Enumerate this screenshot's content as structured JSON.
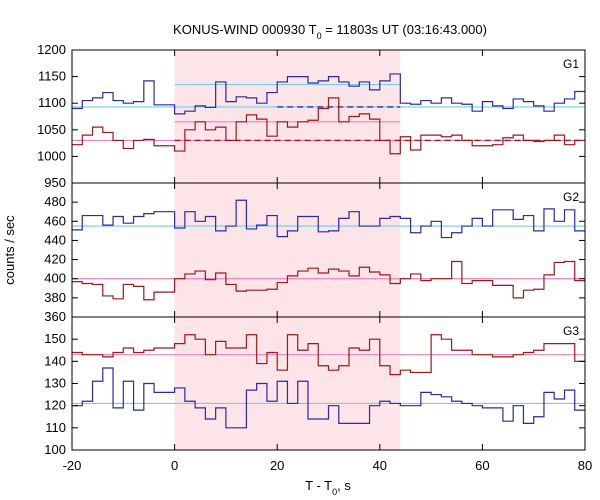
{
  "chart_data": {
    "type": "line",
    "title": "KONUS-WIND 000930 T",
    "title_sub": "0",
    "title_rest": " = 11803s UT (03:16:43.000)",
    "xlabel": "T - T",
    "xlabel_sub": "0",
    "xlabel_rest": ", s",
    "ylabel": "counts / sec",
    "xlim": [
      -20,
      80
    ],
    "xticks": [
      -20,
      0,
      20,
      40,
      60,
      80
    ],
    "highlight_interval": [
      0,
      44
    ],
    "colors": {
      "blue_series": "#2a2aa8",
      "red_series": "#a01818",
      "blue_bg": "#6fd0e8",
      "red_bg": "#ee82c0",
      "highlight": "#fde4e8"
    },
    "panels": [
      {
        "label": "G1",
        "ylim": [
          950,
          1200
        ],
        "yticks": [
          950,
          1000,
          1050,
          1100,
          1150,
          1200
        ],
        "x_edges": [
          -20,
          -18,
          -16,
          -14,
          -12,
          -10,
          -8,
          -6,
          -4,
          -2,
          0,
          2,
          4,
          6,
          8,
          10,
          12,
          14,
          16,
          18,
          20,
          22,
          24,
          26,
          28,
          30,
          32,
          34,
          36,
          38,
          40,
          42,
          44,
          46,
          48,
          50,
          52,
          54,
          56,
          58,
          60,
          62,
          64,
          66,
          68,
          70,
          72,
          74,
          76,
          78,
          80
        ],
        "series": [
          {
            "color": "blue",
            "values": [
              1090,
              1105,
              1110,
              1120,
              1105,
              1100,
              1103,
              1142,
              1097,
              1097,
              1080,
              1085,
              1095,
              1092,
              1140,
              1103,
              1112,
              1110,
              1100,
              1120,
              1140,
              1150,
              1150,
              1138,
              1142,
              1150,
              1140,
              1132,
              1140,
              1125,
              1142,
              1155,
              1100,
              1098,
              1105,
              1100,
              1110,
              1100,
              1098,
              1085,
              1103,
              1095,
              1090,
              1108,
              1103,
              1095,
              1085,
              1100,
              1108,
              1122
            ]
          },
          {
            "color": "red",
            "values": [
              1022,
              1040,
              1055,
              1045,
              1030,
              1015,
              1030,
              1032,
              1020,
              1020,
              1010,
              1050,
              1065,
              1050,
              1055,
              1030,
              1065,
              1078,
              1070,
              1038,
              1065,
              1055,
              1065,
              1068,
              1090,
              1110,
              1065,
              1075,
              1080,
              1070,
              1030,
              1005,
              1037,
              1012,
              1040,
              1040,
              1037,
              1040,
              1030,
              1020,
              1020,
              1022,
              1035,
              1040,
              1030,
              1028,
              1030,
              1040,
              1022,
              1030
            ]
          }
        ],
        "backgrounds": [
          {
            "color": "blue",
            "level": 1093,
            "style": "solid",
            "range": [
              -20,
              80
            ]
          },
          {
            "color": "blue",
            "level": 1093,
            "style": "dashed",
            "range": [
              20,
              44
            ]
          },
          {
            "color": "red",
            "level": 1030,
            "style": "solid",
            "range": [
              -20,
              80
            ]
          },
          {
            "color": "red",
            "level": 1030,
            "style": "dashed",
            "range": [
              0,
              80
            ]
          }
        ],
        "means": [
          {
            "color": "blue",
            "level": 1135,
            "range": [
              0,
              44
            ]
          },
          {
            "color": "red",
            "level": 1065,
            "range": [
              0,
              44
            ]
          }
        ]
      },
      {
        "label": "G2",
        "ylim": [
          360,
          500
        ],
        "yticks": [
          360,
          380,
          400,
          420,
          440,
          460,
          480
        ],
        "x_edges": [
          -20,
          -18,
          -16,
          -14,
          -12,
          -10,
          -8,
          -6,
          -4,
          -2,
          0,
          2,
          4,
          6,
          8,
          10,
          12,
          14,
          16,
          18,
          20,
          22,
          24,
          26,
          28,
          30,
          32,
          34,
          36,
          38,
          40,
          42,
          44,
          46,
          48,
          50,
          52,
          54,
          56,
          58,
          60,
          62,
          64,
          66,
          68,
          70,
          72,
          74,
          76,
          78,
          80
        ],
        "series": [
          {
            "color": "blue",
            "values": [
              451,
              466,
              466,
              456,
              465,
              458,
              465,
              468,
              470,
              470,
              453,
              470,
              460,
              465,
              450,
              455,
              482,
              452,
              456,
              466,
              444,
              450,
              465,
              465,
              449,
              450,
              463,
              470,
              455,
              455,
              463,
              465,
              463,
              448,
              455,
              460,
              443,
              448,
              455,
              463,
              455,
              472,
              472,
              462,
              466,
              450,
              473,
              460,
              472,
              450
            ]
          },
          {
            "color": "red",
            "values": [
              397,
              395,
              394,
              382,
              379,
              394,
              392,
              378,
              386,
              386,
              400,
              405,
              408,
              399,
              406,
              394,
              387,
              388,
              388,
              389,
              396,
              403,
              408,
              411,
              406,
              410,
              408,
              403,
              412,
              407,
              404,
              395,
              400,
              405,
              398,
              400,
              400,
              418,
              395,
              398,
              398,
              393,
              393,
              380,
              388,
              389,
              404,
              417,
              418,
              398
            ]
          }
        ],
        "backgrounds": [
          {
            "color": "blue",
            "level": 455,
            "style": "solid",
            "range": [
              -20,
              80
            ]
          },
          {
            "color": "red",
            "level": 400,
            "style": "solid",
            "range": [
              -20,
              80
            ]
          }
        ],
        "means": []
      },
      {
        "label": "G3",
        "ylim": [
          100,
          160
        ],
        "yticks": [
          100,
          110,
          120,
          130,
          140,
          150
        ],
        "x_edges": [
          -20,
          -18,
          -16,
          -14,
          -12,
          -10,
          -8,
          -6,
          -4,
          -2,
          0,
          2,
          4,
          6,
          8,
          10,
          12,
          14,
          16,
          18,
          20,
          22,
          24,
          26,
          28,
          30,
          32,
          34,
          36,
          38,
          40,
          42,
          44,
          46,
          48,
          50,
          52,
          54,
          56,
          58,
          60,
          62,
          64,
          66,
          68,
          70,
          72,
          74,
          76,
          78,
          80
        ],
        "series": [
          {
            "color": "blue",
            "values": [
              120,
              122,
              131,
              137,
              119,
              131,
              118,
              130,
              126,
              126,
              128,
              122,
              119,
              114,
              119,
              110,
              110,
              127,
              130,
              122,
              131,
              121,
              131,
              114,
              114,
              120,
              112,
              112,
              112,
              120,
              122,
              121,
              120,
              120,
              126,
              125,
              124,
              122,
              121,
              120,
              119,
              119,
              113,
              120,
              112,
              115,
              126,
              123,
              127,
              118
            ]
          },
          {
            "color": "red",
            "values": [
              144,
              143,
              143,
              142,
              144,
              146,
              144,
              145,
              146,
              146,
              148,
              152,
              150,
              143,
              149,
              146,
              146,
              152,
              139,
              144,
              136,
              152,
              145,
              148,
              138,
              136,
              138,
              146,
              145,
              150,
              138,
              134,
              136,
              135,
              135,
              152,
              150,
              145,
              145,
              143,
              143,
              142,
              142,
              143,
              144,
              145,
              148,
              148,
              148,
              140
            ]
          }
        ],
        "backgrounds": [
          {
            "color": "blue",
            "level": 121,
            "style": "solid",
            "range": [
              -20,
              80
            ]
          },
          {
            "color": "red",
            "level": 143,
            "style": "solid",
            "range": [
              -20,
              80
            ]
          }
        ],
        "means": []
      }
    ]
  }
}
